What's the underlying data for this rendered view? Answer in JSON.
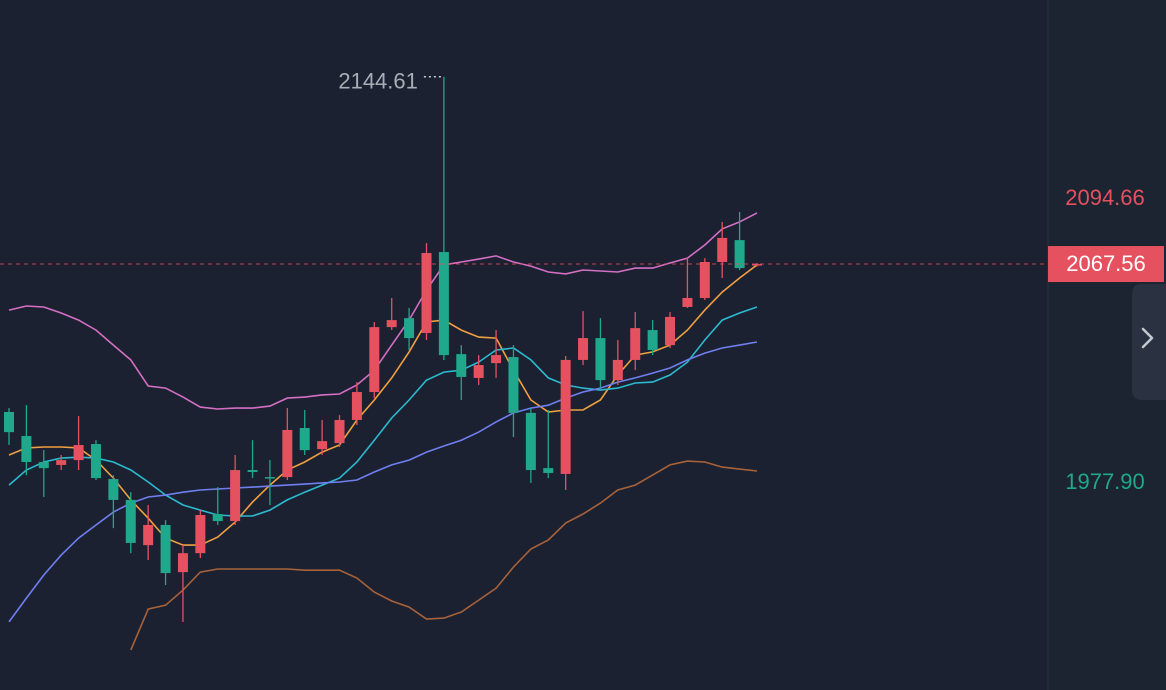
{
  "chart_data": {
    "type": "candlestick",
    "up_color": "#e5515f",
    "down_color": "#1fa88c",
    "ylim": [
      1892.3,
      2176.2
    ],
    "yticks": [
      2094.66,
      {
        "value": 1977.9,
        "label": "1977.90"
      }
    ],
    "open": [
      2006.7,
      1996.8,
      1986.1,
      1984.9,
      1986.9,
      1993.5,
      1979.1,
      1970.5,
      1951.9,
      1960.2,
      1940.8,
      1948.6,
      1964.7,
      1961.8,
      1982.8,
      1979.9,
      1979.9,
      2000.1,
      1991.4,
      1993.9,
      2003.4,
      2014.9,
      2041.6,
      2045.3,
      2039.2,
      2072.5,
      2030.5,
      2020.7,
      2026.8,
      2029.3,
      2006.3,
      1983.6,
      1981.2,
      2028.1,
      2037.1,
      2019.8,
      2028.1,
      2040.4,
      2034.2,
      2049.9,
      2053.6,
      2068.4,
      2077.4,
      2067.0
    ],
    "high": [
      2008.3,
      2009.5,
      1991.0,
      1989.0,
      2005.0,
      1995.1,
      1980.7,
      1973.7,
      1968.4,
      1962.2,
      1951.9,
      1966.3,
      1975.8,
      1989.0,
      1995.1,
      1986.9,
      2008.3,
      2007.5,
      2003.4,
      2005.4,
      2019.0,
      2043.7,
      2053.6,
      2049.5,
      2076.2,
      2144.61,
      2034.2,
      2030.1,
      2040.4,
      2034.2,
      2008.3,
      2007.5,
      2029.7,
      2048.2,
      2045.3,
      2036.3,
      2047.8,
      2044.5,
      2047.8,
      2070.4,
      2070.0,
      2084.9,
      2089.0,
      2068.0
    ],
    "low": [
      1993.1,
      1980.7,
      1971.7,
      1982.8,
      1982.8,
      1978.7,
      1958.9,
      1948.6,
      1945.8,
      1935.5,
      1920.3,
      1946.6,
      1960.2,
      1960.2,
      1979.5,
      1968.4,
      1978.7,
      1989.0,
      1989.0,
      1992.3,
      2001.3,
      2012.4,
      2040.4,
      2032.2,
      2036.3,
      2028.1,
      2011.6,
      2017.8,
      2020.7,
      1996.4,
      1977.5,
      1979.5,
      1974.6,
      2026.0,
      2016.5,
      2017.8,
      2023.9,
      2030.1,
      2033.0,
      2049.5,
      2052.8,
      2061.8,
      2065.1,
      2066.5
    ],
    "close": [
      1998.4,
      1986.1,
      1983.6,
      1986.9,
      1993.1,
      1979.5,
      1970.5,
      1952.8,
      1960.2,
      1940.4,
      1948.6,
      1964.3,
      1961.8,
      1982.8,
      1982.0,
      1979.5,
      1999.3,
      1991.0,
      1994.7,
      2003.4,
      2014.9,
      2041.6,
      2044.5,
      2037.1,
      2072.1,
      2030.1,
      2021.1,
      2026.0,
      2030.1,
      2006.3,
      1982.8,
      1981.6,
      2028.1,
      2037.1,
      2019.8,
      2028.1,
      2041.2,
      2032.2,
      2045.8,
      2053.6,
      2068.4,
      2078.3,
      2065.9,
      2067.56
    ],
    "series": [
      {
        "color": "#d46fc4",
        "values": [
          2048.6,
          2050.3,
          2049.9,
          2047.4,
          2044.5,
          2040.4,
          2034.2,
          2028.1,
          2017.4,
          2016.5,
          2012.8,
          2008.7,
          2007.9,
          2008.3,
          2008.3,
          2009.1,
          2012.4,
          2012.8,
          2013.7,
          2014.1,
          2017.8,
          2023.9,
          2034.2,
          2044.5,
          2056.9,
          2067.2,
          2068.4,
          2069.6,
          2070.9,
          2068.4,
          2066.7,
          2064.3,
          2063.5,
          2065.1,
          2064.7,
          2064.3,
          2065.9,
          2065.9,
          2068.0,
          2070.0,
          2075.4,
          2082.0,
          2084.9,
          2088.6
        ]
      },
      {
        "color": "#a8623a",
        "values": [
          null,
          null,
          null,
          null,
          null,
          null,
          null,
          1908.7,
          1925.6,
          1927.2,
          1933.4,
          1940.8,
          1942.1,
          1942.1,
          1942.1,
          1942.1,
          1942.1,
          1941.6,
          1941.6,
          1941.6,
          1938.4,
          1932.6,
          1928.9,
          1926.4,
          1921.5,
          1921.9,
          1924.4,
          1929.3,
          1934.2,
          1942.9,
          1950.3,
          1954.0,
          1961.0,
          1964.7,
          1969.2,
          1974.6,
          1976.6,
          1980.7,
          1984.9,
          1986.5,
          1986.1,
          1984.0,
          1983.2,
          1982.4
        ]
      },
      {
        "color": "#f0a040",
        "values": [
          1989.0,
          1991.9,
          1992.3,
          1992.3,
          1991.9,
          1986.9,
          1979.5,
          1970.5,
          1963.0,
          1954.8,
          1951.9,
          1951.9,
          1955.2,
          1961.4,
          1969.6,
          1976.6,
          1982.8,
          1986.1,
          1990.2,
          1993.1,
          2003.4,
          2011.6,
          2020.7,
          2031.4,
          2043.7,
          2044.5,
          2040.4,
          2037.5,
          2037.1,
          2023.9,
          2011.6,
          2006.7,
          2007.5,
          2007.5,
          2011.6,
          2021.9,
          2030.1,
          2031.4,
          2034.2,
          2040.4,
          2048.6,
          2056.0,
          2061.8,
          2067.2
        ]
      },
      {
        "color": "#2bbad0",
        "values": [
          1976.6,
          1982.8,
          1986.1,
          1987.7,
          1988.1,
          1987.7,
          1986.1,
          1982.8,
          1977.9,
          1972.5,
          1968.4,
          1966.3,
          1964.3,
          1963.9,
          1963.9,
          1966.3,
          1970.5,
          1973.7,
          1976.6,
          1979.5,
          1986.1,
          1995.1,
          2004.2,
          2011.6,
          2019.8,
          2023.1,
          2023.9,
          2027.2,
          2032.2,
          2033.0,
          2028.1,
          2020.7,
          2017.8,
          2016.5,
          2015.7,
          2016.5,
          2018.6,
          2019.0,
          2021.9,
          2027.2,
          2036.3,
          2044.5,
          2047.4,
          2049.9
        ]
      },
      {
        "color": "#6f7ff0",
        "values": [
          1920.3,
          1930.1,
          1939.6,
          1947.8,
          1954.8,
          1960.2,
          1965.5,
          1969.2,
          1971.7,
          1972.5,
          1973.7,
          1974.6,
          1975.0,
          1975.4,
          1975.8,
          1976.2,
          1976.6,
          1977.0,
          1977.5,
          1977.9,
          1978.7,
          1982.0,
          1984.9,
          1986.9,
          1990.2,
          1992.7,
          1995.1,
          1998.4,
          2002.6,
          2006.3,
          2008.3,
          2009.5,
          2012.4,
          2014.9,
          2016.5,
          2019.0,
          2020.7,
          2022.7,
          2024.8,
          2028.1,
          2030.9,
          2033.0,
          2034.2,
          2035.5
        ]
      }
    ]
  }
}
